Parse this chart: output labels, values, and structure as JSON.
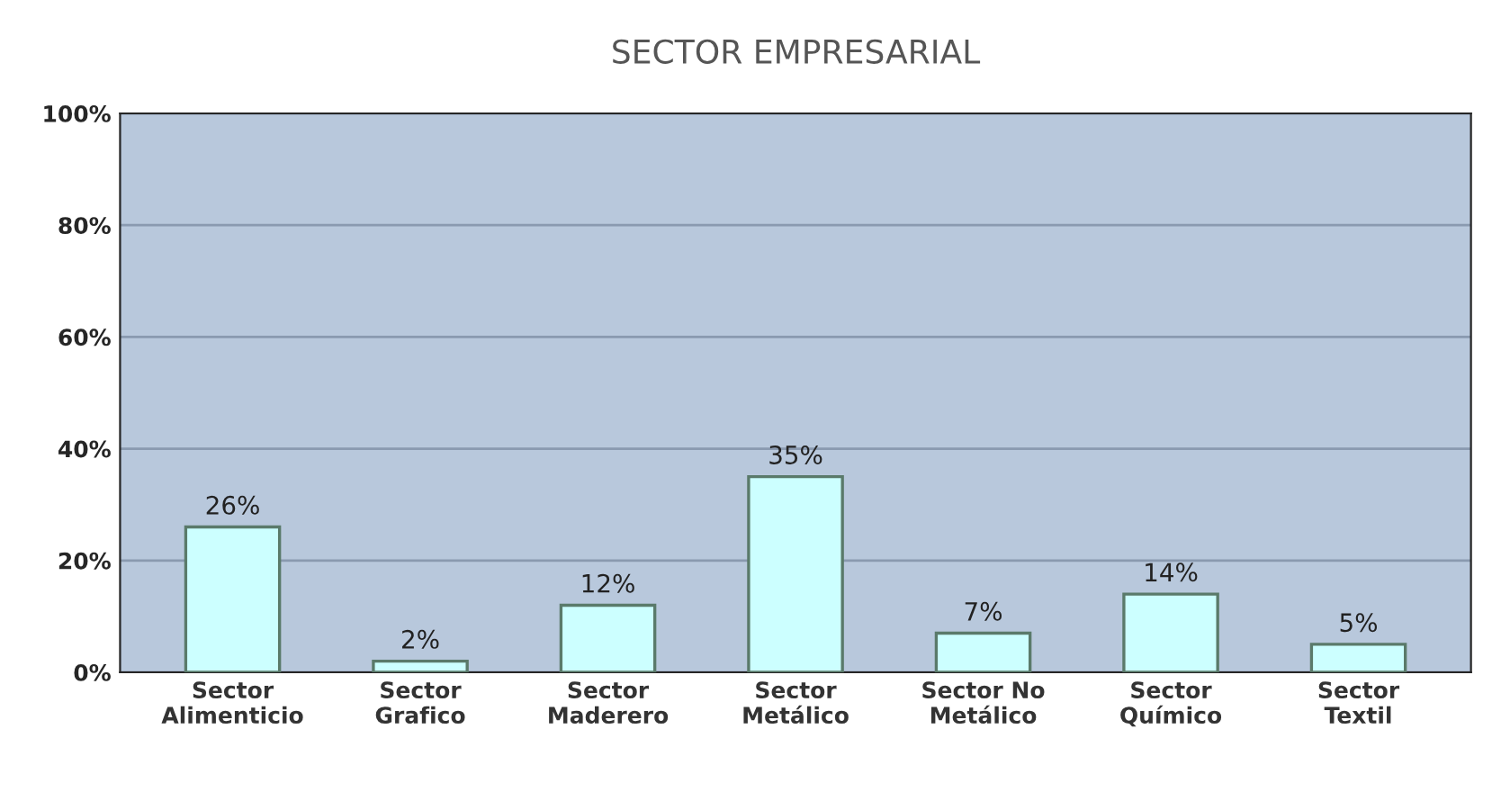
{
  "chart_data": {
    "type": "bar",
    "title": "SECTOR EMPRESARIAL",
    "categories": [
      "Sector\nAlimenticio",
      "Sector\nGrafico",
      "Sector\nMaderero",
      "Sector\nMetálico",
      "Sector No\nMetálico",
      "Sector\nQuímico",
      "Sector\nTextil"
    ],
    "values": [
      26,
      2,
      12,
      35,
      7,
      14,
      5
    ],
    "value_labels": [
      "26%",
      "2%",
      "12%",
      "35%",
      "7%",
      "14%",
      "5%"
    ],
    "color": "#ccffff",
    "ylim": [
      0,
      100
    ],
    "yticks": [
      {
        "value": 0,
        "label": "0%"
      },
      {
        "value": 20,
        "label": "20%"
      },
      {
        "value": 40,
        "label": "40%"
      },
      {
        "value": 60,
        "label": "60%"
      },
      {
        "value": 80,
        "label": "80%"
      },
      {
        "value": 100,
        "label": "100%"
      }
    ],
    "grid": "y"
  }
}
